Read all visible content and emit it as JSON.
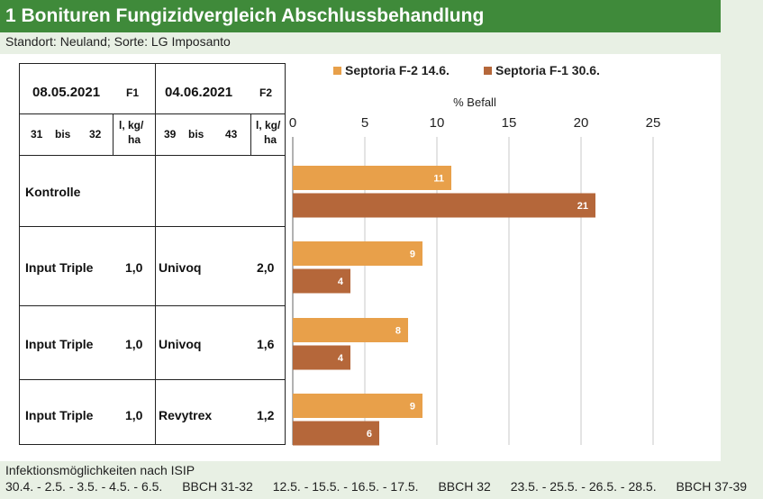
{
  "title": "1 Bonituren Fungizidvergleich Abschlussbehandlung",
  "subtitle": "Standort: Neuland; Sorte: LG Imposanto",
  "table": {
    "header": {
      "date1": "08.05.2021",
      "f1": "F1",
      "date2": "04.06.2021",
      "f2": "F2",
      "bbch1_from": "31",
      "bis1": "bis",
      "bbch1_to": "32",
      "unit1_line1": "l, kg/",
      "unit1_line2": "ha",
      "bbch2_from": "39",
      "bis2": "bis",
      "bbch2_to": "43",
      "unit2_line1": "l, kg/",
      "unit2_line2": "ha"
    },
    "rows": [
      {
        "product1": "Kontrolle",
        "rate1": "",
        "product2": "",
        "rate2": ""
      },
      {
        "product1": "Input Triple",
        "rate1": "1,0",
        "product2": "Univoq",
        "rate2": "2,0"
      },
      {
        "product1": "Input Triple",
        "rate1": "1,0",
        "product2": "Univoq",
        "rate2": "1,6"
      },
      {
        "product1": "Input Triple",
        "rate1": "1,0",
        "product2": "Revytrex",
        "rate2": "1,2"
      }
    ]
  },
  "chart_data": {
    "type": "bar",
    "orientation": "horizontal",
    "xlabel": "% Befall",
    "xlim": [
      0,
      25
    ],
    "xticks": [
      "0",
      "5",
      "10",
      "15",
      "20",
      "25"
    ],
    "grid": true,
    "legend_position": "top",
    "series": [
      {
        "name": "Septoria F-2 14.6.",
        "color": "#e8a04a",
        "values": [
          11,
          9,
          8,
          9
        ]
      },
      {
        "name": "Septoria F-1 30.6.",
        "color": "#b5673a",
        "values": [
          21,
          4,
          4,
          6
        ]
      }
    ]
  },
  "footer": {
    "line1": "Infektionsmöglichkeiten nach ISIP",
    "items": [
      "30.4. - 2.5. - 3.5. - 4.5. - 6.5.",
      "BBCH 31-32",
      "12.5. - 15.5. - 16.5. - 17.5.",
      "BBCH 32",
      "23.5. - 25.5. - 26.5. - 28.5.",
      "BBCH 37-39"
    ]
  }
}
